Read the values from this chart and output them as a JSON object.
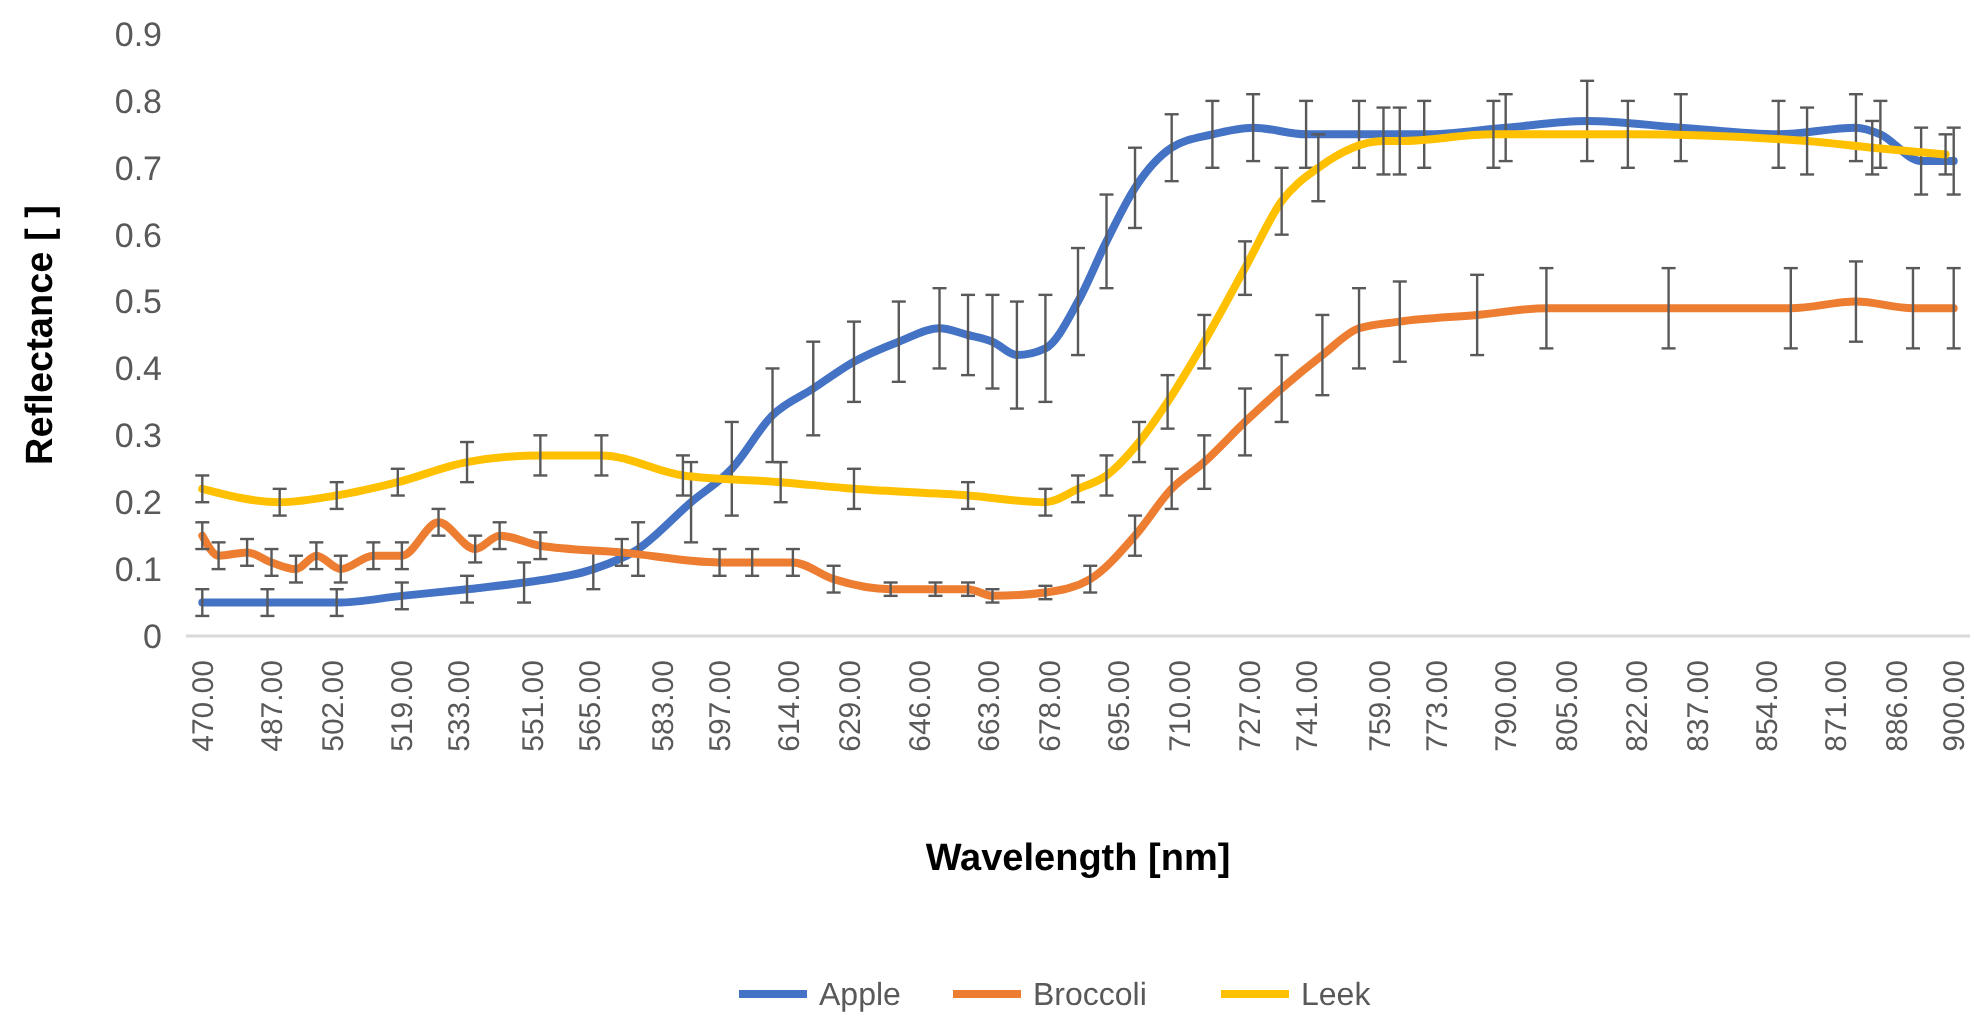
{
  "chart_data": {
    "type": "line",
    "xlabel": "Wavelength [nm]",
    "ylabel": "Reflectance [ ]",
    "xlim": [
      466,
      904
    ],
    "ylim": [
      0,
      0.9
    ],
    "yticks": [
      0,
      0.1,
      0.2,
      0.3,
      0.4,
      0.5,
      0.6,
      0.7,
      0.8,
      0.9
    ],
    "xticks": [
      {
        "value": 470,
        "label": "470.00"
      },
      {
        "value": 487,
        "label": "487.00"
      },
      {
        "value": 502,
        "label": "502.00"
      },
      {
        "value": 519,
        "label": "519.00"
      },
      {
        "value": 533,
        "label": "533.00"
      },
      {
        "value": 551,
        "label": "551.00"
      },
      {
        "value": 565,
        "label": "565.00"
      },
      {
        "value": 583,
        "label": "583.00"
      },
      {
        "value": 597,
        "label": "597.00"
      },
      {
        "value": 614,
        "label": "614.00"
      },
      {
        "value": 629,
        "label": "629.00"
      },
      {
        "value": 646,
        "label": "646.00"
      },
      {
        "value": 663,
        "label": "663.00"
      },
      {
        "value": 678,
        "label": "678.00"
      },
      {
        "value": 695,
        "label": "695.00"
      },
      {
        "value": 710,
        "label": "710.00"
      },
      {
        "value": 727,
        "label": "727.00"
      },
      {
        "value": 741,
        "label": "741.00"
      },
      {
        "value": 759,
        "label": "759.00"
      },
      {
        "value": 773,
        "label": "773.00"
      },
      {
        "value": 790,
        "label": "790.00"
      },
      {
        "value": 805,
        "label": "805.00"
      },
      {
        "value": 822,
        "label": "822.00"
      },
      {
        "value": 837,
        "label": "837.00"
      },
      {
        "value": 854,
        "label": "854.00"
      },
      {
        "value": 871,
        "label": "871.00"
      },
      {
        "value": 886,
        "label": "886.00"
      },
      {
        "value": 900,
        "label": "900.00"
      }
    ],
    "grid": false,
    "legend": "bottom",
    "marker": "none",
    "line_style": "solid",
    "series": [
      {
        "name": "Apple",
        "color": "#4472c4",
        "x": [
          470,
          486,
          503,
          519,
          535,
          549,
          566,
          577,
          590,
          600,
          610,
          620,
          630,
          641,
          651,
          658,
          664,
          670,
          677,
          685,
          692,
          699,
          708,
          718,
          728,
          741,
          754,
          770,
          790,
          810,
          833,
          857,
          876,
          882,
          892,
          900
        ],
        "values": [
          0.05,
          0.05,
          0.05,
          0.06,
          0.07,
          0.08,
          0.1,
          0.13,
          0.2,
          0.25,
          0.33,
          0.37,
          0.41,
          0.44,
          0.46,
          0.45,
          0.44,
          0.42,
          0.43,
          0.5,
          0.59,
          0.67,
          0.73,
          0.75,
          0.76,
          0.75,
          0.75,
          0.75,
          0.76,
          0.77,
          0.76,
          0.75,
          0.76,
          0.75,
          0.71,
          0.71
        ],
        "errors": [
          0.02,
          0.02,
          0.02,
          0.02,
          0.02,
          0.03,
          0.03,
          0.04,
          0.06,
          0.07,
          0.07,
          0.07,
          0.06,
          0.06,
          0.06,
          0.06,
          0.07,
          0.08,
          0.08,
          0.08,
          0.07,
          0.06,
          0.05,
          0.05,
          0.05,
          0.05,
          0.05,
          0.05,
          0.05,
          0.06,
          0.05,
          0.05,
          0.05,
          0.05,
          0.05,
          0.05
        ]
      },
      {
        "name": "Broccoli",
        "color": "#ed7d31",
        "x": [
          470,
          474,
          481,
          487,
          493,
          498,
          504,
          512,
          519,
          528,
          537,
          543,
          553,
          573,
          597,
          605,
          615,
          625,
          639,
          650,
          658,
          664,
          677,
          688,
          699,
          708,
          716,
          726,
          735,
          745,
          754,
          764,
          783,
          800,
          830,
          860,
          876,
          890,
          900
        ],
        "values": [
          0.15,
          0.12,
          0.125,
          0.11,
          0.1,
          0.12,
          0.1,
          0.12,
          0.12,
          0.17,
          0.13,
          0.15,
          0.135,
          0.125,
          0.11,
          0.11,
          0.11,
          0.085,
          0.07,
          0.07,
          0.07,
          0.06,
          0.065,
          0.085,
          0.15,
          0.22,
          0.26,
          0.32,
          0.37,
          0.42,
          0.46,
          0.47,
          0.48,
          0.49,
          0.49,
          0.49,
          0.5,
          0.49,
          0.49
        ],
        "errors": [
          0.02,
          0.02,
          0.02,
          0.02,
          0.02,
          0.02,
          0.02,
          0.02,
          0.02,
          0.02,
          0.02,
          0.02,
          0.02,
          0.02,
          0.02,
          0.02,
          0.02,
          0.02,
          0.01,
          0.01,
          0.01,
          0.01,
          0.01,
          0.02,
          0.03,
          0.03,
          0.04,
          0.05,
          0.05,
          0.06,
          0.06,
          0.06,
          0.06,
          0.06,
          0.06,
          0.06,
          0.06,
          0.06,
          0.06
        ]
      },
      {
        "name": "Leek",
        "color": "#ffc000",
        "x": [
          470,
          489,
          503,
          518,
          535,
          553,
          568,
          588,
          612,
          630,
          658,
          677,
          685,
          692,
          700,
          707,
          716,
          726,
          735,
          744,
          760,
          764,
          787,
          820,
          864,
          880,
          898
        ],
        "values": [
          0.22,
          0.2,
          0.21,
          0.23,
          0.26,
          0.27,
          0.27,
          0.24,
          0.23,
          0.22,
          0.21,
          0.2,
          0.22,
          0.24,
          0.29,
          0.35,
          0.44,
          0.55,
          0.65,
          0.7,
          0.74,
          0.74,
          0.75,
          0.75,
          0.74,
          0.73,
          0.72
        ],
        "errors": [
          0.02,
          0.02,
          0.02,
          0.02,
          0.03,
          0.03,
          0.03,
          0.03,
          0.03,
          0.03,
          0.02,
          0.02,
          0.02,
          0.03,
          0.03,
          0.04,
          0.04,
          0.04,
          0.05,
          0.05,
          0.05,
          0.05,
          0.05,
          0.05,
          0.05,
          0.04,
          0.03
        ]
      }
    ]
  }
}
